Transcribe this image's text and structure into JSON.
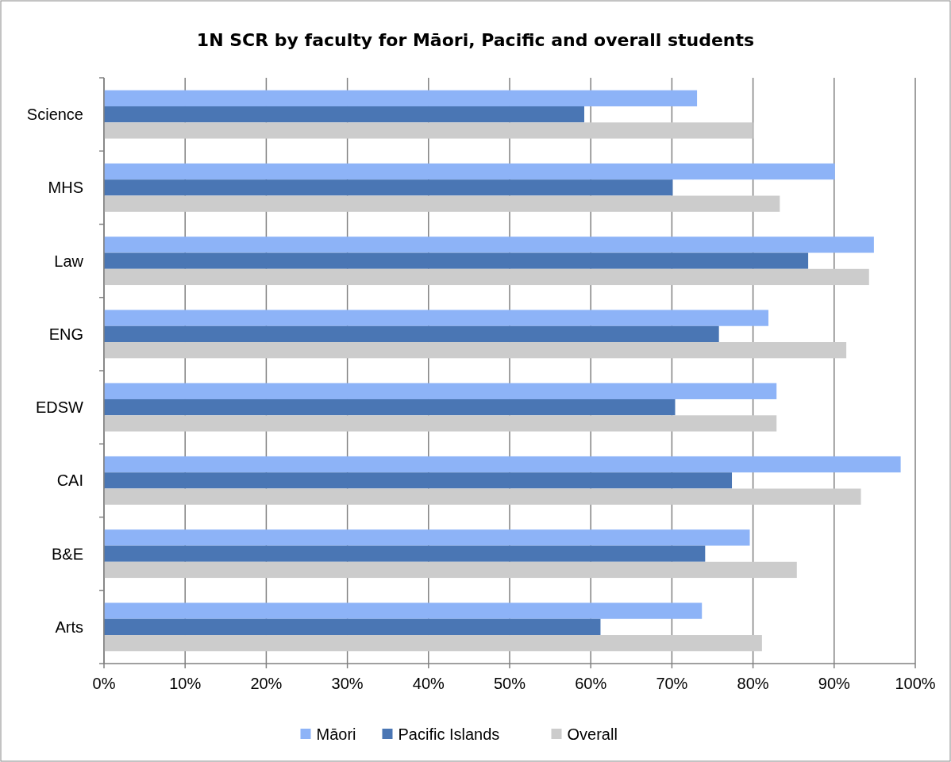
{
  "chart_data": {
    "type": "bar",
    "orientation": "horizontal",
    "title": "1N SCR by faculty for Māori, Pacific and overall students",
    "categories": [
      "Science",
      "MHS",
      "Law",
      "ENG",
      "EDSW",
      "CAI",
      "B&E",
      "Arts"
    ],
    "series": [
      {
        "name": "Māori",
        "color": "#8db3f7",
        "values": [
          73.1,
          90.1,
          94.9,
          81.9,
          82.9,
          98.2,
          79.6,
          73.7
        ]
      },
      {
        "name": "Pacific Islands",
        "color": "#4a76b4",
        "values": [
          59.2,
          70.1,
          86.8,
          75.8,
          70.4,
          77.4,
          74.1,
          61.2
        ]
      },
      {
        "name": "Overall",
        "color": "#cccccc",
        "values": [
          80.0,
          83.3,
          94.3,
          91.5,
          82.9,
          93.3,
          85.4,
          81.1
        ]
      }
    ],
    "xlim": [
      0,
      100
    ],
    "xticks": [
      {
        "value": 0,
        "label": "0%"
      },
      {
        "value": 10,
        "label": "10%"
      },
      {
        "value": 20,
        "label": "20%"
      },
      {
        "value": 30,
        "label": "30%"
      },
      {
        "value": 40,
        "label": "40%"
      },
      {
        "value": 50,
        "label": "50%"
      },
      {
        "value": 60,
        "label": "60%"
      },
      {
        "value": 70,
        "label": "70%"
      },
      {
        "value": 80,
        "label": "80%"
      },
      {
        "value": 90,
        "label": "90%"
      },
      {
        "value": 100,
        "label": "100%"
      }
    ],
    "grid": "x",
    "legend": "bottom"
  }
}
